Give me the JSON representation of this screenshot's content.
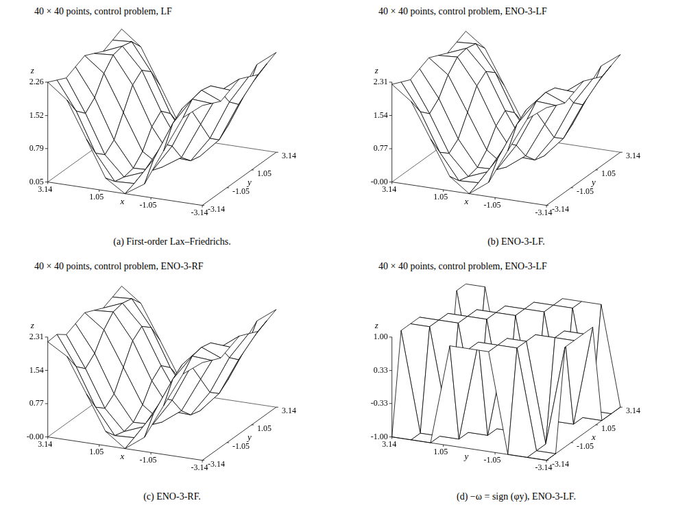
{
  "chart_data": [
    {
      "type": "surface",
      "title": "40 × 40 points, control problem, LF",
      "caption": "(a) First-order Lax–Friedrichs.",
      "xlabel": "x",
      "ylabel": "y",
      "zlabel": "z",
      "xlim": [
        3.14,
        -3.14
      ],
      "xticks": [
        3.14,
        1.05,
        -1.05,
        -3.14
      ],
      "ylim": [
        -3.14,
        3.14
      ],
      "yticks": [
        -3.14,
        -1.05,
        1.05,
        3.14
      ],
      "zlim": [
        0.05,
        2.26
      ],
      "zticks": [
        0.05,
        0.79,
        1.52,
        2.26
      ],
      "x": [
        -3.14,
        -2.36,
        -1.57,
        -0.79,
        0,
        0.79,
        1.57,
        2.36,
        3.14
      ],
      "y": [
        -3.14,
        -2.36,
        -1.57,
        -0.79,
        0,
        0.79,
        1.57,
        2.36,
        3.14
      ],
      "z": [
        [
          2.26,
          1.93,
          1.13,
          0.33,
          0.05,
          0.33,
          1.13,
          1.93,
          2.26
        ],
        [
          2.16,
          2.19,
          1.59,
          0.73,
          0.13,
          0.11,
          0.67,
          1.54,
          2.16
        ],
        [
          2.06,
          2.24,
          1.77,
          0.93,
          0.23,
          0.06,
          0.49,
          1.34,
          2.06
        ],
        [
          2.16,
          2.19,
          1.59,
          0.73,
          0.13,
          0.11,
          0.67,
          1.54,
          2.16
        ],
        [
          2.26,
          1.93,
          1.13,
          0.33,
          0.05,
          0.33,
          1.13,
          1.93,
          2.26
        ],
        [
          2.16,
          1.54,
          0.67,
          0.11,
          0.13,
          0.73,
          1.59,
          2.19,
          2.16
        ],
        [
          2.06,
          1.34,
          0.49,
          0.06,
          0.23,
          0.93,
          1.77,
          2.24,
          2.06
        ],
        [
          2.16,
          1.54,
          0.67,
          0.11,
          0.13,
          0.73,
          1.59,
          2.19,
          2.16
        ],
        [
          2.26,
          1.93,
          1.13,
          0.33,
          0.05,
          0.33,
          1.13,
          1.93,
          2.26
        ]
      ]
    },
    {
      "type": "surface",
      "title": "40 × 40 points, control problem, ENO-3-LF",
      "caption": "(b) ENO-3-LF.",
      "xlabel": "x",
      "ylabel": "y",
      "zlabel": "z",
      "xlim": [
        3.14,
        -3.14
      ],
      "xticks": [
        3.14,
        1.05,
        -1.05,
        -3.14
      ],
      "ylim": [
        -3.14,
        3.14
      ],
      "yticks": [
        -3.14,
        -1.05,
        1.05,
        3.14
      ],
      "zlim": [
        0,
        2.31
      ],
      "zticks": [
        {
          "value": 0,
          "label": "-0.00"
        },
        0.77,
        1.54,
        2.31
      ],
      "x": [
        -3.14,
        -2.36,
        -1.57,
        -0.79,
        0,
        0.79,
        1.57,
        2.36,
        3.14
      ],
      "y": [
        -3.14,
        -2.36,
        -1.57,
        -0.79,
        0,
        0.79,
        1.57,
        2.36,
        3.14
      ],
      "z": [
        [
          2.26,
          1.93,
          1.13,
          0.33,
          0,
          0.33,
          1.13,
          1.93,
          2.26
        ],
        [
          2.16,
          2.19,
          1.59,
          0.73,
          0.1,
          0.08,
          0.67,
          1.54,
          2.16
        ],
        [
          2.06,
          2.24,
          1.77,
          0.93,
          0.2,
          0.02,
          0.49,
          1.34,
          2.06
        ],
        [
          2.16,
          2.19,
          1.59,
          0.73,
          0.1,
          0.08,
          0.67,
          1.54,
          2.16
        ],
        [
          2.26,
          1.93,
          1.13,
          0.33,
          0,
          0.33,
          1.13,
          1.93,
          2.26
        ],
        [
          2.16,
          1.54,
          0.67,
          0.08,
          0.1,
          0.73,
          1.59,
          2.19,
          2.16
        ],
        [
          2.06,
          1.34,
          0.49,
          0.02,
          0.2,
          0.93,
          1.77,
          2.24,
          2.06
        ],
        [
          2.16,
          1.54,
          0.67,
          0.08,
          0.1,
          0.73,
          1.59,
          2.19,
          2.16
        ],
        [
          2.26,
          1.93,
          1.13,
          0.33,
          0,
          0.33,
          1.13,
          1.93,
          2.26
        ]
      ]
    },
    {
      "type": "surface",
      "title": "40 × 40 points, control problem, ENO-3-RF",
      "caption": "(c) ENO-3-RF.",
      "xlabel": "x",
      "ylabel": "y",
      "zlabel": "z",
      "xlim": [
        3.14,
        -3.14
      ],
      "xticks": [
        3.14,
        1.05,
        -1.05,
        -3.14
      ],
      "ylim": [
        -3.14,
        3.14
      ],
      "yticks": [
        -3.14,
        -1.05,
        1.05,
        3.14
      ],
      "zlim": [
        0,
        2.31
      ],
      "zticks": [
        {
          "value": 0,
          "label": "-0.00"
        },
        0.77,
        1.54,
        2.31
      ],
      "x": [
        -3.14,
        -2.36,
        -1.57,
        -0.79,
        0,
        0.79,
        1.57,
        2.36,
        3.14
      ],
      "y": [
        -3.14,
        -2.36,
        -1.57,
        -0.79,
        0,
        0.79,
        1.57,
        2.36,
        3.14
      ],
      "z": [
        [
          2.26,
          1.93,
          1.13,
          0.33,
          0,
          0.33,
          1.13,
          1.93,
          2.2
        ],
        [
          2.16,
          2.19,
          1.59,
          0.73,
          0.1,
          0.08,
          0.67,
          1.54,
          2.22
        ],
        [
          2.06,
          2.24,
          1.77,
          0.93,
          0.2,
          0.02,
          0.49,
          1.34,
          2.06
        ],
        [
          2.16,
          2.19,
          1.59,
          0.73,
          0.1,
          0.08,
          0.67,
          1.54,
          2.16
        ],
        [
          2.26,
          1.93,
          1.13,
          0.33,
          0,
          0.33,
          1.13,
          1.93,
          2.26
        ],
        [
          2.16,
          1.54,
          0.67,
          0.08,
          0.1,
          0.73,
          1.59,
          2.19,
          2.16
        ],
        [
          2.06,
          1.34,
          0.49,
          0.02,
          0.2,
          0.93,
          1.77,
          2.24,
          2.06
        ],
        [
          2.16,
          1.54,
          0.67,
          0.08,
          0.1,
          0.73,
          1.59,
          2.19,
          2.16
        ],
        [
          2.26,
          1.93,
          1.13,
          0.33,
          0,
          0.33,
          1.13,
          1.93,
          2.26
        ]
      ]
    },
    {
      "type": "surface",
      "title": "40 × 40 points, control problem, ENO-3-LF",
      "caption": "(d) −ω = sign (φy), ENO-3-LF.",
      "xlabel": "y",
      "ylabel": "x",
      "zlabel": "z",
      "xlim": [
        3.14,
        -3.14
      ],
      "xticks": [
        3.14,
        1.05,
        -1.05,
        -3.14
      ],
      "ylim": [
        -3.14,
        3.14
      ],
      "yticks": [
        -3.14,
        -1.05,
        1.05,
        3.14
      ],
      "zlim": [
        -1,
        1
      ],
      "zticks": [
        {
          "value": -1,
          "label": "-1.00"
        },
        -0.33,
        0.33,
        {
          "value": 1,
          "label": "1.00"
        }
      ],
      "x": [
        -3.14,
        -2.36,
        -1.57,
        -0.79,
        0,
        0.79,
        1.57,
        2.36,
        3.14
      ],
      "y": [
        -3.14,
        -2.36,
        -1.57,
        -0.79,
        0,
        0.79,
        1.57,
        2.36,
        3.14
      ],
      "z": [
        [
          -1,
          -1,
          -1,
          1,
          1,
          1,
          -1,
          -1,
          -1
        ],
        [
          -1,
          -1,
          1,
          1,
          1,
          -1,
          -1,
          -1,
          1
        ],
        [
          1,
          -1,
          1,
          1,
          -1,
          -1,
          -1,
          1,
          1
        ],
        [
          1,
          1,
          1,
          -1,
          -1,
          -1,
          1,
          1,
          1
        ],
        [
          1,
          1,
          -1,
          -1,
          -1,
          1,
          1,
          1,
          -1
        ],
        [
          1,
          -1,
          -1,
          -1,
          1,
          1,
          1,
          -1,
          -1
        ],
        [
          -1,
          -1,
          -1,
          1,
          1,
          1,
          -1,
          -1,
          -1
        ],
        [
          -1,
          -1,
          1,
          1,
          1,
          -1,
          -1,
          -1,
          1
        ],
        [
          -1,
          1,
          1,
          1,
          -1,
          -1,
          -1,
          1,
          1
        ]
      ]
    }
  ]
}
